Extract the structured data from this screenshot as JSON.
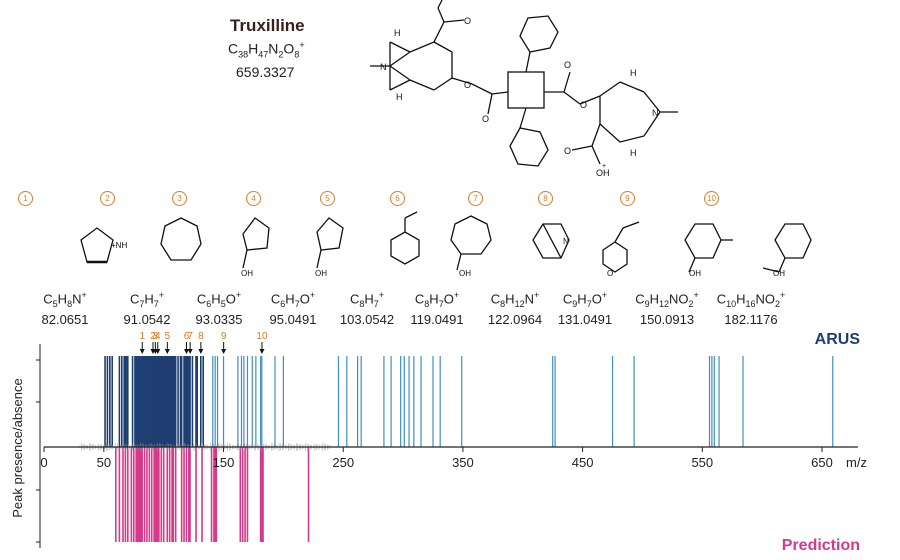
{
  "compound": {
    "name": "Truxilline",
    "formula": "C38H47N2O8+",
    "formula_html": "C<sub>38</sub>H<sub>47</sub>N<sub>2</sub>O<sub>8</sub><sup>+</sup>",
    "mass": "659.3327"
  },
  "main_structure_labels": {
    "H": "H",
    "N": "N",
    "O": "O",
    "OH": "OH",
    "plus": "+"
  },
  "fragments": [
    {
      "num": "1",
      "formula_html": "C<sub>5</sub>H<sub>8</sub>N<sup>+</sup>",
      "mass": "82.0651",
      "label": "+NH"
    },
    {
      "num": "2",
      "formula_html": "C<sub>7</sub>H<sub>7</sub><sup>+</sup>",
      "mass": "91.0542",
      "label": ""
    },
    {
      "num": "3",
      "formula_html": "C<sub>6</sub>H<sub>5</sub>O<sup>+</sup>",
      "mass": "93.0335",
      "label": "OH"
    },
    {
      "num": "4",
      "formula_html": "C<sub>6</sub>H<sub>7</sub>O<sup>+</sup>",
      "mass": "95.0491",
      "label": "OH"
    },
    {
      "num": "5",
      "formula_html": "C<sub>8</sub>H<sub>7</sub><sup>+</sup>",
      "mass": "103.0542",
      "label": ""
    },
    {
      "num": "6",
      "formula_html": "C<sub>8</sub>H<sub>7</sub>O<sup>+</sup>",
      "mass": "119.0491",
      "label": "OH"
    },
    {
      "num": "7",
      "formula_html": "C<sub>8</sub>H<sub>12</sub>N<sup>+</sup>",
      "mass": "122.0964",
      "label": "N"
    },
    {
      "num": "8",
      "formula_html": "C<sub>9</sub>H<sub>7</sub>O<sup>+</sup>",
      "mass": "131.0491",
      "label": "O"
    },
    {
      "num": "9",
      "formula_html": "C<sub>9</sub>H<sub>12</sub>NO<sub>2</sub><sup>+</sup>",
      "mass": "150.0913",
      "label": "OH"
    },
    {
      "num": "10",
      "formula_html": "C<sub>10</sub>H<sub>16</sub>NO<sub>2</sub><sup>+</sup>",
      "mass": "182.1176",
      "label": "OH"
    }
  ],
  "chart_data": {
    "type": "bar",
    "xlabel": "m/z",
    "ylabel": "Peak presence/absence",
    "xlim": [
      0,
      680
    ],
    "xticks": [
      0,
      50,
      150,
      250,
      350,
      450,
      550,
      650
    ],
    "series": [
      {
        "name": "ARUS",
        "color": "#1e3f73",
        "x": [
          51,
          53,
          55,
          57,
          63,
          65,
          67,
          68,
          69,
          70,
          74,
          76,
          77,
          78,
          79,
          80,
          81,
          82,
          83,
          84,
          85,
          86,
          87,
          88,
          89,
          90,
          91,
          92,
          93,
          94,
          95,
          96,
          97,
          98,
          99,
          100,
          101,
          102,
          103,
          104,
          105,
          106,
          107,
          108,
          109,
          110,
          112,
          114,
          115,
          117,
          118,
          119,
          120,
          121,
          122,
          124,
          127,
          128,
          131,
          133,
          141,
          143,
          145,
          150,
          162,
          165,
          167,
          170,
          174,
          177,
          181,
          182,
          193,
          200,
          246,
          253,
          262,
          265,
          284,
          290,
          298,
          301,
          305,
          309,
          315,
          325,
          331,
          349,
          425,
          427,
          475,
          493,
          556,
          558,
          560,
          564,
          584,
          659
        ]
      },
      {
        "name": "Prediction",
        "color": "#d6398a",
        "x": [
          60,
          63,
          66,
          68,
          70,
          73,
          75,
          77,
          78,
          79,
          80,
          81,
          82,
          84,
          86,
          88,
          90,
          92,
          93,
          94,
          95,
          96,
          98,
          100,
          103,
          105,
          107,
          108,
          110,
          115,
          117,
          119,
          121,
          122,
          127,
          132,
          140,
          142,
          143,
          144,
          164,
          166,
          168,
          170,
          181,
          182,
          183,
          221
        ]
      }
    ],
    "annotations": {
      "labels": [
        "1",
        "2",
        "3",
        "4",
        "5",
        "6",
        "7",
        "8",
        "9",
        "10"
      ],
      "x": [
        82.0651,
        91.0542,
        93.0335,
        95.0491,
        103.0542,
        119.0491,
        122.0964,
        131.0491,
        150.0913,
        182.1176
      ],
      "color": "#e07b22"
    },
    "noise_range": [
      30,
      240
    ],
    "grid": false,
    "legend": "ARUS top-right, Prediction bottom-right"
  }
}
